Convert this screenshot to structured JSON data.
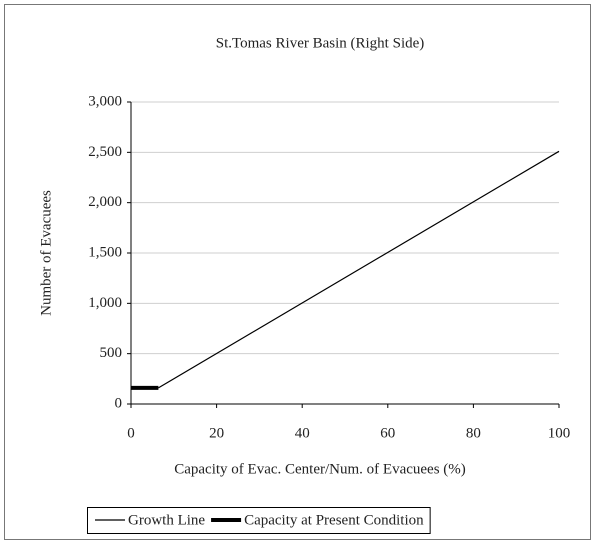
{
  "chart_data": {
    "type": "line",
    "title": "St.Tomas River Basin (Right Side)",
    "x_label": "Capacity of Evac. Center/Num. of Evacuees (%)",
    "y_label": "Number of  Evacuees",
    "xlim": [
      0,
      100
    ],
    "xticks": [
      0,
      20,
      40,
      60,
      80,
      100
    ],
    "ylim": [
      0,
      3000
    ],
    "yticks": [
      0,
      500,
      {
        "value": 1000,
        "label": "1,000"
      },
      {
        "value": 1500,
        "label": "1,500"
      },
      {
        "value": 2000,
        "label": "2,000"
      },
      {
        "value": 2500,
        "label": "2,500"
      },
      {
        "value": 3000,
        "label": "3,000"
      }
    ],
    "grid": true,
    "legend": "bottom",
    "series": [
      {
        "name": "Growth Line",
        "color": "#000000",
        "line_width": 1.2,
        "x": [
          6.4,
          100
        ],
        "values": [
          160,
          2510
        ]
      },
      {
        "name": "Capacity at Present Condition",
        "color": "#000000",
        "line_width": 4,
        "x": [
          0,
          6.4
        ],
        "values": [
          160,
          160
        ]
      }
    ]
  }
}
